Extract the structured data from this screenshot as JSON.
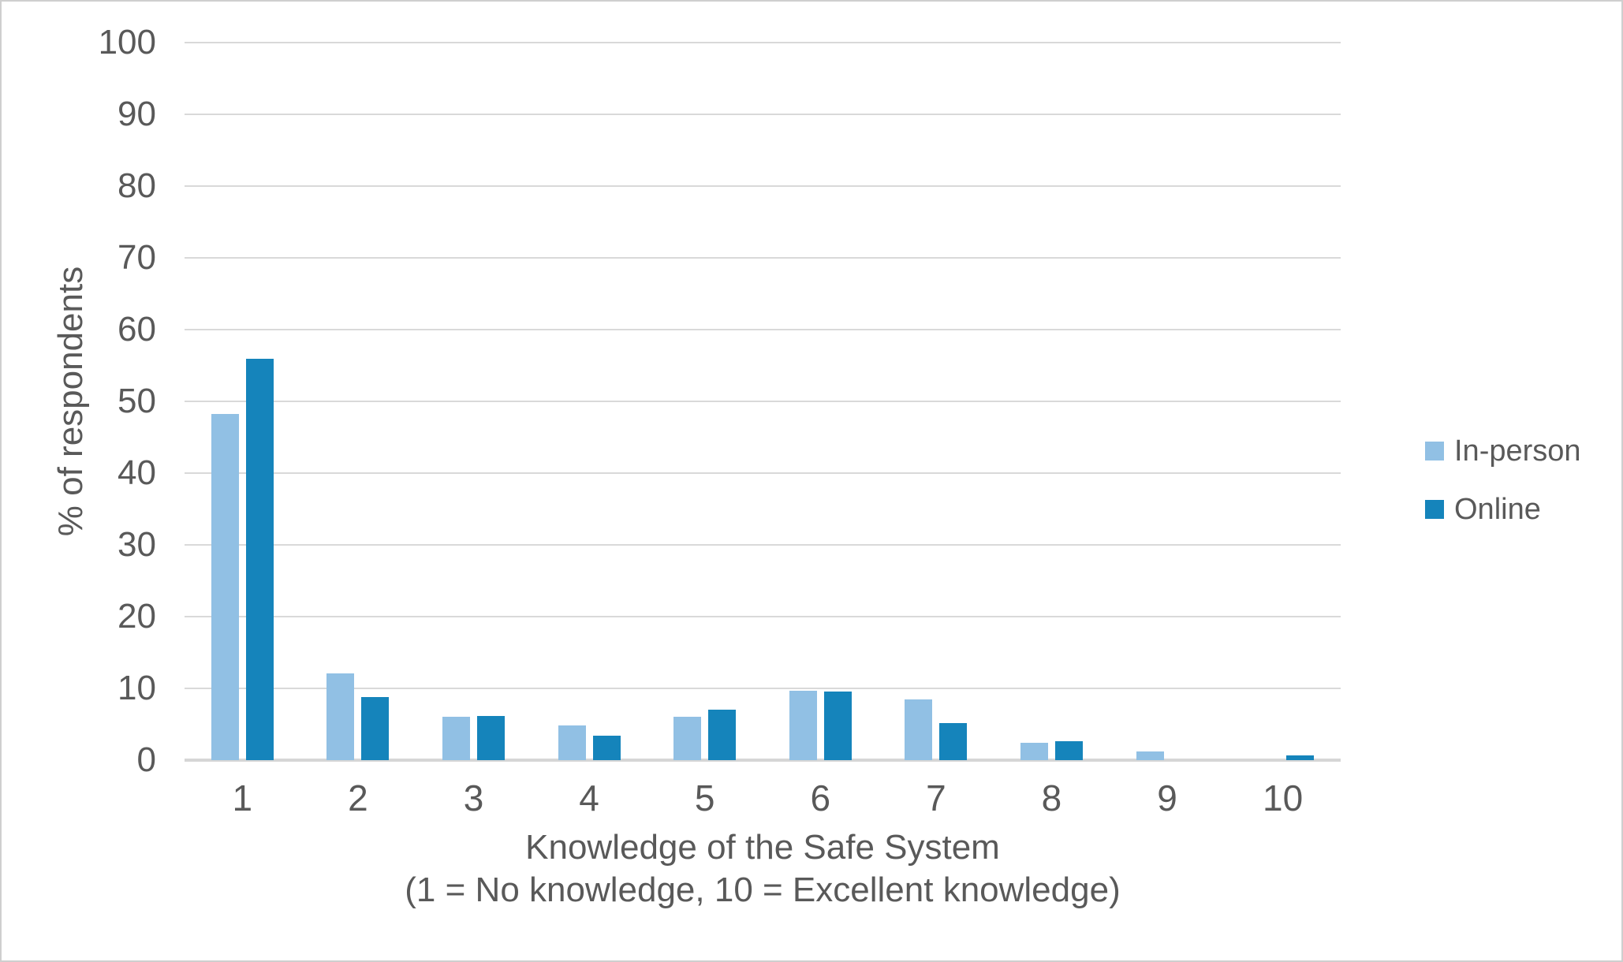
{
  "chart_data": {
    "type": "bar",
    "title": "",
    "xlabel_line1": "Knowledge of the Safe System",
    "xlabel_line2": "(1 = No knowledge, 10 = Excellent knowledge)",
    "ylabel": "% of respondents",
    "categories": [
      "1",
      "2",
      "3",
      "4",
      "5",
      "6",
      "7",
      "8",
      "9",
      "10"
    ],
    "yticks": [
      0,
      10,
      20,
      30,
      40,
      50,
      60,
      70,
      80,
      90,
      100
    ],
    "ylim": [
      0,
      100
    ],
    "grid": true,
    "legend_position": "right",
    "series": [
      {
        "name": "In-person",
        "color": "#91C0E4",
        "values": [
          48.2,
          12.1,
          6.0,
          4.8,
          6.0,
          9.7,
          8.5,
          2.4,
          1.2,
          0
        ]
      },
      {
        "name": "Online",
        "color": "#1584BB",
        "values": [
          55.9,
          8.8,
          6.2,
          3.4,
          7.0,
          9.6,
          5.2,
          2.6,
          0,
          0.7
        ]
      }
    ]
  },
  "colors": {
    "text": "#595959",
    "gridline": "#D9D9D9",
    "axis_line": "#D6D6D6",
    "background": "#FFFFFF",
    "border": "#CFCFCF"
  }
}
